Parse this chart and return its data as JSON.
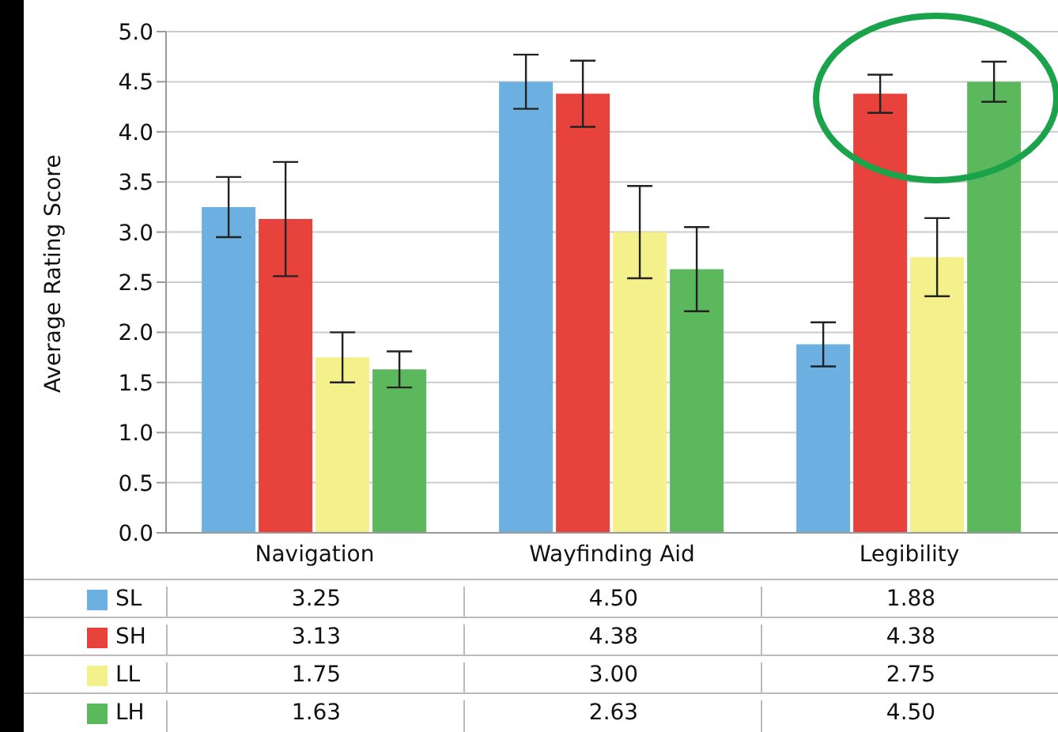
{
  "chart_data": {
    "type": "bar",
    "ylabel": "Average Rating Score",
    "categories": [
      "Navigation",
      "Wayfinding Aid",
      "Legibility"
    ],
    "series": [
      {
        "name": "SL",
        "color": "#6cb0e2",
        "values": [
          3.25,
          4.5,
          1.88
        ],
        "value_labels": [
          "3.25",
          "4.50",
          "1.88"
        ],
        "errors": [
          0.3,
          0.27,
          0.22
        ]
      },
      {
        "name": "SH",
        "color": "#e8423c",
        "values": [
          3.13,
          4.38,
          4.38
        ],
        "value_labels": [
          "3.13",
          "4.38",
          "4.38"
        ],
        "errors": [
          0.57,
          0.33,
          0.19
        ]
      },
      {
        "name": "LL",
        "color": "#f4f08c",
        "values": [
          1.75,
          3.0,
          2.75
        ],
        "value_labels": [
          "1.75",
          "3.00",
          "2.75"
        ],
        "errors": [
          0.25,
          0.46,
          0.39
        ]
      },
      {
        "name": "LH",
        "color": "#5cb85c",
        "values": [
          1.63,
          2.63,
          4.5
        ],
        "value_labels": [
          "1.63",
          "2.63",
          "4.50"
        ],
        "errors": [
          0.18,
          0.42,
          0.2
        ]
      }
    ],
    "ylim": [
      0,
      5
    ],
    "yticks": [
      {
        "value": 0,
        "label": "0.0"
      },
      {
        "value": 0.5,
        "label": "0.5"
      },
      {
        "value": 1,
        "label": "1.0"
      },
      {
        "value": 1.5,
        "label": "1.5"
      },
      {
        "value": 2,
        "label": "2.0"
      },
      {
        "value": 2.5,
        "label": "2.5"
      },
      {
        "value": 3,
        "label": "3.0"
      },
      {
        "value": 3.5,
        "label": "3.5"
      },
      {
        "value": 4,
        "label": "4.0"
      },
      {
        "value": 4.5,
        "label": "4.5"
      },
      {
        "value": 5,
        "label": "5.0"
      }
    ],
    "grid": "y",
    "legend": "bottom"
  }
}
